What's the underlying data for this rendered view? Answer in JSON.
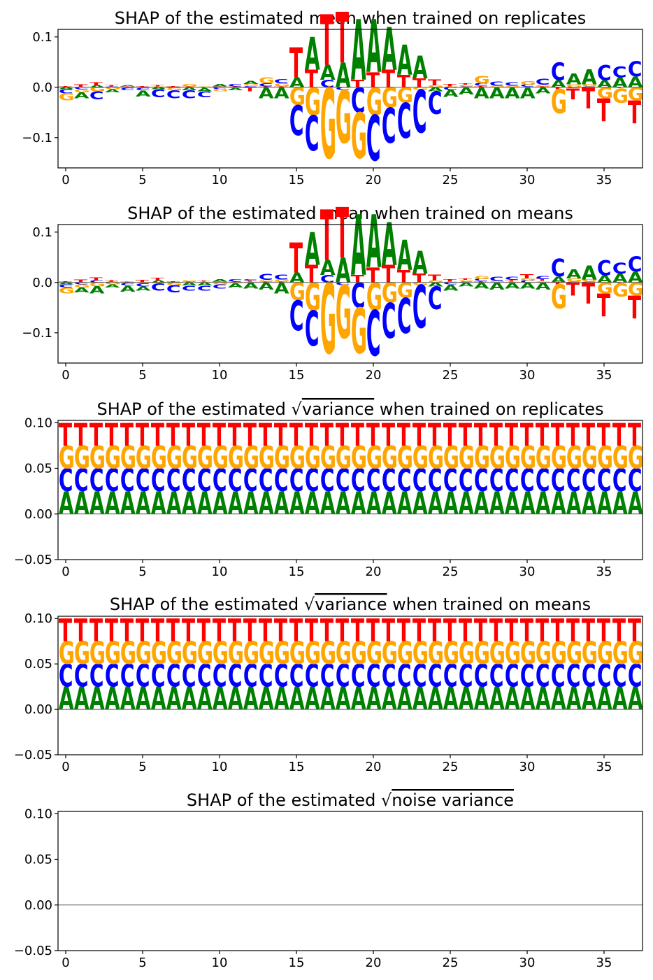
{
  "colors": {
    "A": "#008000",
    "C": "#0000ff",
    "G": "#ffa500",
    "T": "#ff0000"
  },
  "chart_data": [
    {
      "type": "sequence-logo",
      "title": "SHAP of the estimated mean when trained on replicates",
      "title_prefix": "",
      "title_sqrt_term": "",
      "title_suffix": "",
      "xlabel": "",
      "ylabel": "",
      "xlim": [
        -0.5,
        37.5
      ],
      "ylim": [
        -0.16,
        0.115
      ],
      "xticks": [
        0,
        5,
        10,
        15,
        20,
        25,
        30,
        35
      ],
      "xtick_labels": [
        "0",
        "5",
        "10",
        "15",
        "20",
        "25",
        "30",
        "35"
      ],
      "yticks": [
        -0.1,
        0.0,
        0.1
      ],
      "ytick_labels": [
        "−0.1",
        "0.0",
        "0.1"
      ],
      "positions": [
        {
          "pos": 0,
          "A": -0.004,
          "C": -0.008,
          "G": -0.014,
          "T": 0.003
        },
        {
          "pos": 1,
          "A": -0.012,
          "C": -0.004,
          "G": -0.006,
          "T": 0.006
        },
        {
          "pos": 2,
          "A": 0.004,
          "C": -0.016,
          "G": -0.008,
          "T": 0.006
        },
        {
          "pos": 3,
          "A": -0.006,
          "C": 0.002,
          "G": -0.004,
          "T": 0.003
        },
        {
          "pos": 4,
          "A": 0.003,
          "C": -0.004,
          "G": -0.002,
          "T": 0.002
        },
        {
          "pos": 5,
          "A": -0.012,
          "C": -0.004,
          "G": -0.002,
          "T": 0.003
        },
        {
          "pos": 6,
          "A": -0.004,
          "C": -0.016,
          "G": 0.002,
          "T": 0.003
        },
        {
          "pos": 7,
          "A": -0.002,
          "C": -0.016,
          "G": -0.004,
          "T": 0.003
        },
        {
          "pos": 8,
          "A": -0.006,
          "C": -0.016,
          "G": 0.004,
          "T": 0.002
        },
        {
          "pos": 9,
          "A": -0.006,
          "C": -0.012,
          "G": 0.002,
          "T": -0.002
        },
        {
          "pos": 10,
          "A": 0.004,
          "C": -0.004,
          "G": -0.004,
          "T": 0.002
        },
        {
          "pos": 11,
          "A": -0.004,
          "C": 0.004,
          "G": -0.002,
          "T": 0.002
        },
        {
          "pos": 12,
          "A": 0.006,
          "C": 0.003,
          "G": 0.004,
          "T": -0.008
        },
        {
          "pos": 13,
          "A": -0.022,
          "C": 0.006,
          "G": 0.012,
          "T": 0.002
        },
        {
          "pos": 14,
          "A": -0.022,
          "C": 0.008,
          "G": 0.006,
          "T": 0.002
        },
        {
          "pos": 15,
          "A": 0.02,
          "C": -0.06,
          "G": -0.035,
          "T": 0.06
        },
        {
          "pos": 16,
          "A": 0.065,
          "C": -0.07,
          "G": -0.055,
          "T": 0.035
        },
        {
          "pos": 17,
          "A": 0.03,
          "C": 0.015,
          "G": -0.14,
          "T": 0.1
        },
        {
          "pos": 18,
          "A": 0.05,
          "C": -0.005,
          "G": -0.105,
          "T": 0.1
        },
        {
          "pos": 19,
          "A": 0.12,
          "C": -0.05,
          "G": -0.09,
          "T": 0.015
        },
        {
          "pos": 20,
          "A": 0.105,
          "C": -0.09,
          "G": -0.055,
          "T": 0.03
        },
        {
          "pos": 21,
          "A": 0.085,
          "C": -0.07,
          "G": -0.04,
          "T": 0.035
        },
        {
          "pos": 22,
          "A": 0.06,
          "C": -0.07,
          "G": -0.03,
          "T": 0.025
        },
        {
          "pos": 23,
          "A": 0.045,
          "C": -0.085,
          "G": -0.005,
          "T": 0.018
        },
        {
          "pos": 24,
          "A": -0.008,
          "C": -0.045,
          "G": 0.004,
          "T": 0.012
        },
        {
          "pos": 25,
          "A": -0.014,
          "C": -0.005,
          "G": 0.002,
          "T": 0.004
        },
        {
          "pos": 26,
          "A": -0.014,
          "C": 0.002,
          "G": 0.003,
          "T": 0.003
        },
        {
          "pos": 27,
          "A": -0.022,
          "C": 0.005,
          "G": 0.014,
          "T": 0.003
        },
        {
          "pos": 28,
          "A": -0.022,
          "C": 0.008,
          "G": 0.002,
          "T": 0.001
        },
        {
          "pos": 29,
          "A": -0.022,
          "C": 0.007,
          "G": 0.002,
          "T": 0.001
        },
        {
          "pos": 30,
          "A": -0.022,
          "C": 0.004,
          "G": 0.007,
          "T": 0.001
        },
        {
          "pos": 31,
          "A": -0.012,
          "C": 0.012,
          "G": 0.003,
          "T": 0.002
        },
        {
          "pos": 32,
          "A": 0.014,
          "C": 0.035,
          "G": -0.048,
          "T": -0.004
        },
        {
          "pos": 33,
          "A": 0.022,
          "C": -0.002,
          "G": 0.006,
          "T": -0.022
        },
        {
          "pos": 34,
          "A": 0.03,
          "C": 0.002,
          "G": 0.004,
          "T": -0.042
        },
        {
          "pos": 35,
          "A": 0.014,
          "C": 0.03,
          "G": -0.022,
          "T": -0.045
        },
        {
          "pos": 36,
          "A": 0.02,
          "C": 0.022,
          "G": -0.028,
          "T": -0.002
        },
        {
          "pos": 37,
          "A": 0.022,
          "C": 0.03,
          "G": -0.026,
          "T": -0.045
        }
      ]
    },
    {
      "type": "sequence-logo",
      "title": "SHAP of the estimated mean when trained on means",
      "title_prefix": "",
      "title_sqrt_term": "",
      "title_suffix": "",
      "xlabel": "",
      "ylabel": "",
      "xlim": [
        -0.5,
        37.5
      ],
      "ylim": [
        -0.16,
        0.115
      ],
      "xticks": [
        0,
        5,
        10,
        15,
        20,
        25,
        30,
        35
      ],
      "xtick_labels": [
        "0",
        "5",
        "10",
        "15",
        "20",
        "25",
        "30",
        "35"
      ],
      "yticks": [
        -0.1,
        0.0,
        0.1
      ],
      "ytick_labels": [
        "−0.1",
        "0.0",
        "0.1"
      ],
      "positions": [
        {
          "pos": 0,
          "A": -0.004,
          "C": -0.006,
          "G": -0.012,
          "T": 0.003
        },
        {
          "pos": 1,
          "A": -0.01,
          "C": -0.004,
          "G": -0.006,
          "T": 0.006
        },
        {
          "pos": 2,
          "A": -0.014,
          "C": 0.004,
          "G": -0.008,
          "T": 0.006
        },
        {
          "pos": 3,
          "A": -0.006,
          "C": 0.002,
          "G": -0.004,
          "T": 0.003
        },
        {
          "pos": 4,
          "A": -0.012,
          "C": -0.004,
          "G": -0.002,
          "T": 0.002
        },
        {
          "pos": 5,
          "A": -0.008,
          "C": -0.006,
          "G": -0.002,
          "T": 0.005
        },
        {
          "pos": 6,
          "A": 0.004,
          "C": -0.014,
          "G": -0.002,
          "T": 0.005
        },
        {
          "pos": 7,
          "A": -0.002,
          "C": -0.014,
          "G": -0.004,
          "T": 0.003
        },
        {
          "pos": 8,
          "A": -0.006,
          "C": -0.01,
          "G": 0.003,
          "T": 0.002
        },
        {
          "pos": 9,
          "A": -0.006,
          "C": -0.01,
          "G": 0.002,
          "T": 0.002
        },
        {
          "pos": 10,
          "A": 0.004,
          "C": -0.008,
          "G": -0.004,
          "T": 0.002
        },
        {
          "pos": 11,
          "A": -0.008,
          "C": 0.004,
          "G": -0.002,
          "T": 0.002
        },
        {
          "pos": 12,
          "A": -0.012,
          "C": 0.003,
          "G": 0.002,
          "T": 0.002
        },
        {
          "pos": 13,
          "A": -0.014,
          "C": 0.012,
          "G": 0.003,
          "T": 0.002
        },
        {
          "pos": 14,
          "A": -0.022,
          "C": 0.01,
          "G": 0.004,
          "T": 0.002
        },
        {
          "pos": 15,
          "A": 0.02,
          "C": -0.06,
          "G": -0.035,
          "T": 0.06
        },
        {
          "pos": 16,
          "A": 0.065,
          "C": -0.07,
          "G": -0.055,
          "T": 0.035
        },
        {
          "pos": 17,
          "A": 0.03,
          "C": 0.015,
          "G": -0.14,
          "T": 0.1
        },
        {
          "pos": 18,
          "A": 0.05,
          "C": -0.005,
          "G": -0.105,
          "T": 0.1
        },
        {
          "pos": 19,
          "A": 0.12,
          "C": -0.05,
          "G": -0.09,
          "T": 0.015
        },
        {
          "pos": 20,
          "A": 0.105,
          "C": -0.09,
          "G": -0.055,
          "T": 0.03
        },
        {
          "pos": 21,
          "A": 0.085,
          "C": -0.07,
          "G": -0.04,
          "T": 0.035
        },
        {
          "pos": 22,
          "A": 0.06,
          "C": -0.07,
          "G": -0.03,
          "T": 0.025
        },
        {
          "pos": 23,
          "A": 0.045,
          "C": -0.085,
          "G": -0.005,
          "T": 0.018
        },
        {
          "pos": 24,
          "A": -0.008,
          "C": -0.045,
          "G": 0.004,
          "T": 0.012
        },
        {
          "pos": 25,
          "A": -0.012,
          "C": -0.004,
          "G": 0.002,
          "T": 0.004
        },
        {
          "pos": 26,
          "A": -0.008,
          "C": 0.002,
          "G": 0.003,
          "T": 0.003
        },
        {
          "pos": 27,
          "A": -0.012,
          "C": 0.004,
          "G": 0.006,
          "T": 0.003
        },
        {
          "pos": 28,
          "A": -0.014,
          "C": 0.008,
          "G": 0.002,
          "T": 0.001
        },
        {
          "pos": 29,
          "A": -0.012,
          "C": 0.006,
          "G": 0.002,
          "T": 0.003
        },
        {
          "pos": 30,
          "A": -0.012,
          "C": 0.004,
          "G": 0.004,
          "T": 0.008
        },
        {
          "pos": 31,
          "A": -0.014,
          "C": 0.006,
          "G": 0.003,
          "T": 0.004
        },
        {
          "pos": 32,
          "A": 0.012,
          "C": 0.035,
          "G": -0.048,
          "T": -0.004
        },
        {
          "pos": 33,
          "A": 0.018,
          "C": 0.002,
          "G": 0.006,
          "T": -0.026
        },
        {
          "pos": 34,
          "A": 0.028,
          "C": 0.002,
          "G": 0.004,
          "T": -0.042
        },
        {
          "pos": 35,
          "A": 0.014,
          "C": 0.03,
          "G": -0.022,
          "T": -0.045
        },
        {
          "pos": 36,
          "A": 0.018,
          "C": 0.022,
          "G": -0.026,
          "T": -0.002
        },
        {
          "pos": 37,
          "A": 0.022,
          "C": 0.03,
          "G": -0.026,
          "T": -0.045
        }
      ]
    },
    {
      "type": "sequence-logo",
      "title": "SHAP of the estimated √variance when trained on replicates",
      "title_prefix": "SHAP of the estimated √",
      "title_sqrt_term": "variance",
      "title_suffix": " when trained on replicates",
      "xlabel": "",
      "ylabel": "",
      "xlim": [
        -0.5,
        37.5
      ],
      "ylim": [
        -0.05,
        0.1025
      ],
      "xticks": [
        0,
        5,
        10,
        15,
        20,
        25,
        30,
        35
      ],
      "xtick_labels": [
        "0",
        "5",
        "10",
        "15",
        "20",
        "25",
        "30",
        "35"
      ],
      "yticks": [
        -0.05,
        0.0,
        0.05,
        0.1
      ],
      "ytick_labels": [
        "−0.05",
        "0.00",
        "0.05",
        "0.10"
      ],
      "uniform_per_position": {
        "A": 0.025,
        "C": 0.025,
        "G": 0.025,
        "T": 0.025
      },
      "positions": []
    },
    {
      "type": "sequence-logo",
      "title": "SHAP of the estimated √variance when trained on means",
      "title_prefix": "SHAP of the estimated √",
      "title_sqrt_term": "variance",
      "title_suffix": " when trained on means",
      "xlabel": "",
      "ylabel": "",
      "xlim": [
        -0.5,
        37.5
      ],
      "ylim": [
        -0.05,
        0.1025
      ],
      "xticks": [
        0,
        5,
        10,
        15,
        20,
        25,
        30,
        35
      ],
      "xtick_labels": [
        "0",
        "5",
        "10",
        "15",
        "20",
        "25",
        "30",
        "35"
      ],
      "yticks": [
        -0.05,
        0.0,
        0.05,
        0.1
      ],
      "ytick_labels": [
        "−0.05",
        "0.00",
        "0.05",
        "0.10"
      ],
      "uniform_per_position": {
        "A": 0.025,
        "C": 0.025,
        "G": 0.025,
        "T": 0.025
      },
      "positions": []
    },
    {
      "type": "sequence-logo",
      "title": "SHAP of the estimated √noise variance",
      "title_prefix": "SHAP of the estimated √",
      "title_sqrt_term": "noise variance",
      "title_suffix": "",
      "xlabel": "",
      "ylabel": "",
      "xlim": [
        -0.5,
        37.5
      ],
      "ylim": [
        -0.05,
        0.1025
      ],
      "xticks": [
        0,
        5,
        10,
        15,
        20,
        25,
        30,
        35
      ],
      "xtick_labels": [
        "0",
        "5",
        "10",
        "15",
        "20",
        "25",
        "30",
        "35"
      ],
      "yticks": [
        -0.05,
        0.0,
        0.05,
        0.1
      ],
      "ytick_labels": [
        "−0.05",
        "0.00",
        "0.05",
        "0.10"
      ],
      "positions": []
    }
  ]
}
